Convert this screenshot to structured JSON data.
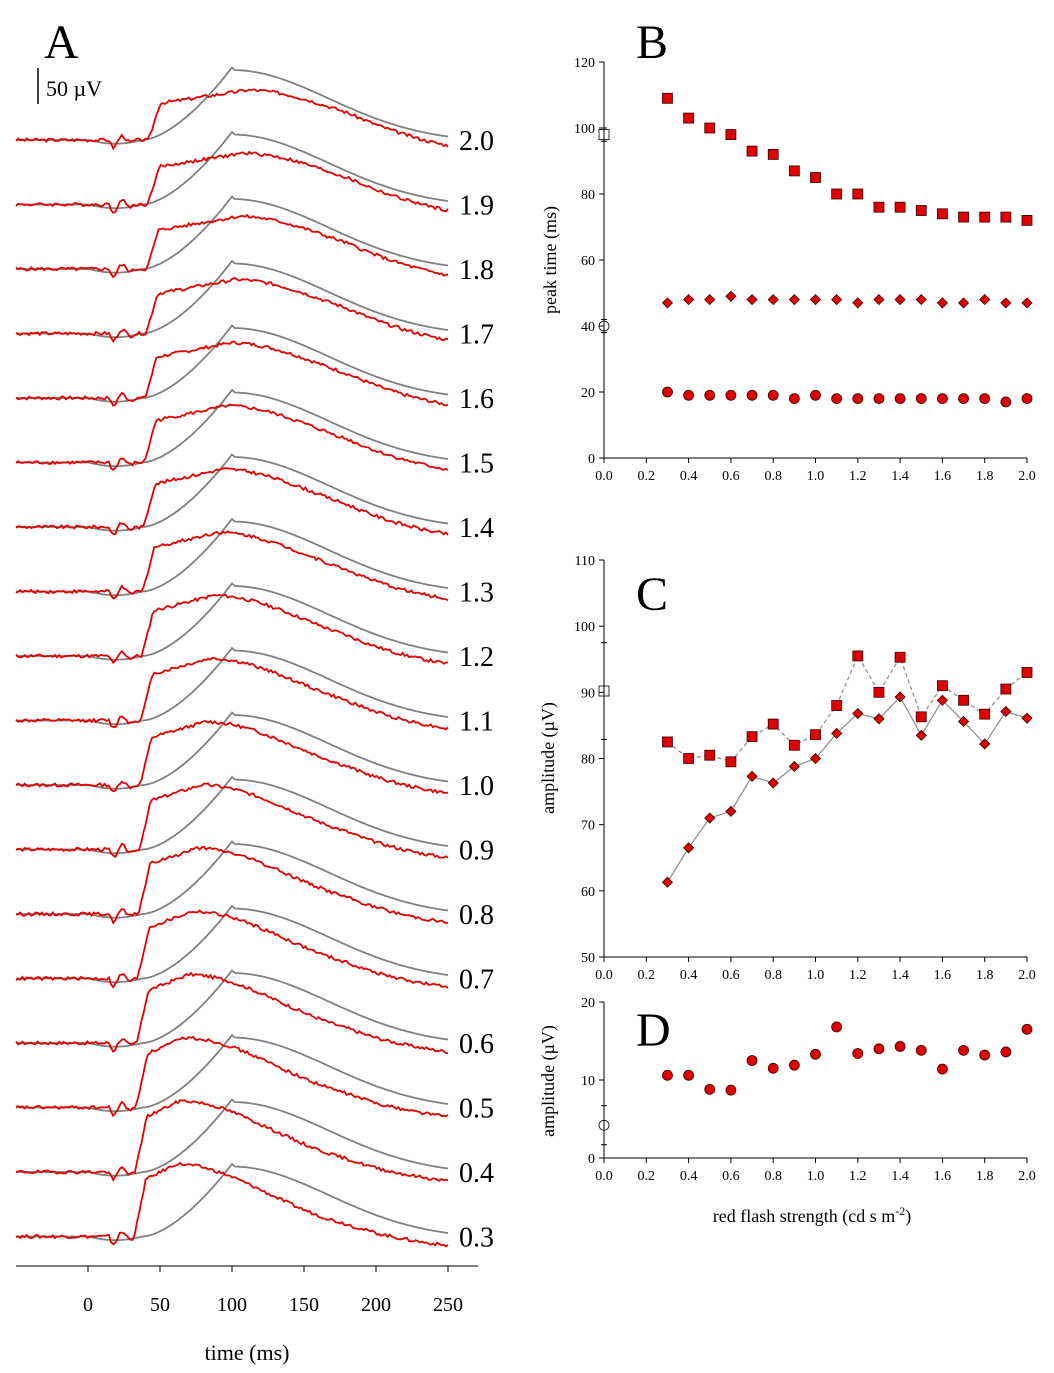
{
  "panels": {
    "A": "A",
    "B": "B",
    "C": "C",
    "D": "D"
  },
  "scale_bar": "50 µV",
  "colors": {
    "red": "#e30000",
    "gray": "#808080",
    "marker_fill": "#e00000"
  },
  "chart_data": [
    {
      "id": "A",
      "type": "line",
      "xlabel": "time (ms)",
      "xticks": [
        0,
        50,
        100,
        150,
        200,
        250
      ],
      "xlim": [
        -50,
        270
      ],
      "series": [
        {
          "values": [
            {
              "stim": "2.0"
            }
          ]
        }
      ],
      "trace_labels": [
        "2.0",
        "1.9",
        "1.8",
        "1.7",
        "1.6",
        "1.5",
        "1.4",
        "1.3",
        "1.2",
        "1.1",
        "1.0",
        "0.9",
        "0.8",
        "0.7",
        "0.6",
        "0.5",
        "0.4",
        "0.3"
      ]
    },
    {
      "id": "B",
      "type": "scatter",
      "ylabel": "peak time (ms)",
      "ylim": [
        0,
        120
      ],
      "yticks": [
        0,
        20,
        40,
        60,
        80,
        100,
        120
      ],
      "xlim": [
        0,
        2
      ],
      "xticks": [
        "0.0",
        "0.2",
        "0.4",
        "0.6",
        "0.8",
        "1.0",
        "1.2",
        "1.4",
        "1.6",
        "1.8",
        "2.0"
      ],
      "x": [
        0.3,
        0.4,
        0.5,
        0.6,
        0.7,
        0.8,
        0.9,
        1.0,
        1.1,
        1.2,
        1.3,
        1.4,
        1.5,
        1.6,
        1.7,
        1.8,
        1.9,
        2.0
      ],
      "series": [
        {
          "marker": "square",
          "values": [
            109,
            103,
            100,
            98,
            93,
            92,
            87,
            85,
            80,
            80,
            76,
            76,
            75,
            74,
            73,
            73,
            73,
            72
          ],
          "control": {
            "x": 0,
            "y": 98,
            "err": 2
          }
        },
        {
          "marker": "diamond",
          "values": [
            47,
            48,
            48,
            49,
            48,
            48,
            48,
            48,
            48,
            47,
            48,
            48,
            48,
            47,
            47,
            48,
            47,
            47
          ],
          "control": {
            "x": 0,
            "y": 40,
            "err": 2
          }
        },
        {
          "marker": "circle",
          "values": [
            20,
            19,
            19,
            19,
            19,
            19,
            18,
            19,
            18,
            18,
            18,
            18,
            18,
            18,
            18,
            18,
            17,
            18
          ]
        }
      ]
    },
    {
      "id": "C",
      "type": "line",
      "ylabel": "amplitude (µV)",
      "ylim": [
        50,
        110
      ],
      "yticks": [
        50,
        60,
        70,
        80,
        90,
        100,
        110
      ],
      "xlim": [
        0,
        2
      ],
      "xticks": [
        "0.0",
        "0.2",
        "0.4",
        "0.6",
        "0.8",
        "1.0",
        "1.2",
        "1.4",
        "1.6",
        "1.8",
        "2.0"
      ],
      "x": [
        0.3,
        0.4,
        0.5,
        0.6,
        0.7,
        0.8,
        0.9,
        1.0,
        1.1,
        1.2,
        1.3,
        1.4,
        1.5,
        1.6,
        1.7,
        1.8,
        1.9,
        2.0
      ],
      "series": [
        {
          "marker": "square",
          "line": "dashed",
          "values": [
            82.5,
            80,
            80.5,
            79.5,
            83.3,
            85.2,
            82,
            83.6,
            88,
            95.5,
            90,
            95.3,
            86.3,
            91,
            88.8,
            86.7,
            90.5,
            93
          ],
          "control": {
            "x": 0,
            "y": 90.2,
            "err": 7.3
          }
        },
        {
          "marker": "diamond",
          "line": "solid",
          "values": [
            61.3,
            66.5,
            71,
            72,
            77.3,
            76.3,
            78.8,
            80,
            83.8,
            86.8,
            86,
            89.3,
            83.5,
            88.8,
            85.6,
            82.2,
            87.1,
            86.1
          ]
        }
      ]
    },
    {
      "id": "D",
      "type": "scatter",
      "ylabel": "amplitude (µV)",
      "xlabel": "red flash strength (cd s m-2)",
      "ylim": [
        0,
        20
      ],
      "yticks": [
        0,
        10,
        20
      ],
      "xlim": [
        0,
        2
      ],
      "xticks": [
        "0.0",
        "0.2",
        "0.4",
        "0.6",
        "0.8",
        "1.0",
        "1.2",
        "1.4",
        "1.6",
        "1.8",
        "2.0"
      ],
      "x": [
        0.3,
        0.4,
        0.5,
        0.6,
        0.7,
        0.8,
        0.9,
        1.0,
        1.1,
        1.2,
        1.3,
        1.4,
        1.5,
        1.6,
        1.7,
        1.8,
        1.9,
        2.0
      ],
      "series": [
        {
          "marker": "circle",
          "values": [
            10.6,
            10.6,
            8.8,
            8.7,
            12.5,
            11.5,
            11.9,
            13.3,
            16.8,
            13.4,
            14,
            14.3,
            13.8,
            11.4,
            13.8,
            13.2,
            13.6,
            16.5
          ],
          "control": {
            "x": 0,
            "y": 4.2,
            "err": 2.5
          }
        }
      ]
    }
  ]
}
